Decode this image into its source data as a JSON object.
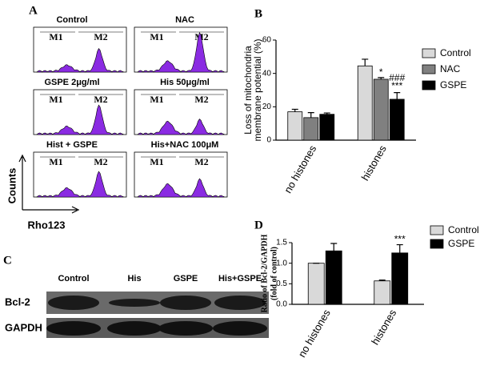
{
  "chart_data": [
    {
      "type": "bar",
      "label": "B",
      "ylabel": [
        "Loss of mitochondria",
        "membrane potential (%)"
      ],
      "categories": [
        "no histones",
        "histones"
      ],
      "series": [
        {
          "name": "Control",
          "color": "#d9d9d9",
          "values": [
            17,
            44.5
          ],
          "errors": [
            1.5,
            4
          ]
        },
        {
          "name": "NAC",
          "color": "#808080",
          "values": [
            13.5,
            36.5
          ],
          "errors": [
            3,
            1
          ]
        },
        {
          "name": "GSPE",
          "color": "#000000",
          "values": [
            15.5,
            24.5
          ],
          "errors": [
            0.8,
            4
          ]
        }
      ],
      "annotations": [
        "*",
        "###",
        "***"
      ],
      "ylim": [
        0,
        60
      ],
      "yticks": [
        0,
        20,
        40,
        60
      ]
    },
    {
      "type": "bar",
      "label": "D",
      "ylabel": [
        "Ratio of Bcl-2/GAPDH",
        "(fold of control)"
      ],
      "categories": [
        "no histones",
        "histones"
      ],
      "series": [
        {
          "name": "Control",
          "color": "#d9d9d9",
          "values": [
            1.0,
            0.57
          ],
          "errors": [
            0,
            0.02
          ]
        },
        {
          "name": "GSPE",
          "color": "#000000",
          "values": [
            1.3,
            1.25
          ],
          "errors": [
            0.18,
            0.2
          ]
        }
      ],
      "annotations": [
        "***"
      ],
      "ylim": [
        0,
        1.5
      ],
      "yticks": [
        {
          "value": 0,
          "label": "0.0"
        },
        {
          "value": 0.5,
          "label": "0.5"
        },
        {
          "value": 1,
          "label": "1.0"
        },
        {
          "value": 1.5,
          "label": "1.5"
        }
      ]
    }
  ],
  "flow_panel": {
    "label": "A",
    "ylabel": "Counts",
    "xlabel": "Rho123",
    "plots": [
      {
        "title": "Control",
        "gates": [
          "M1",
          "M2"
        ]
      },
      {
        "title": "NAC",
        "gates": [
          "M1",
          "M2"
        ]
      },
      {
        "title": "GSPE 2μg/ml",
        "gates": [
          "M1",
          "M2"
        ]
      },
      {
        "title": "His 50μg/ml",
        "gates": [
          "M1",
          "M2"
        ]
      },
      {
        "title": "Hist + GSPE",
        "gates": [
          "M1",
          "M2"
        ]
      },
      {
        "title": "His+NAC 100μM",
        "gates": [
          "M1",
          "M2"
        ]
      }
    ]
  },
  "blot_panel": {
    "label": "C",
    "lanes": [
      "Control",
      "His",
      "GSPE",
      "His+GSPE"
    ],
    "rows": [
      "Bcl-2",
      "GAPDH"
    ]
  }
}
